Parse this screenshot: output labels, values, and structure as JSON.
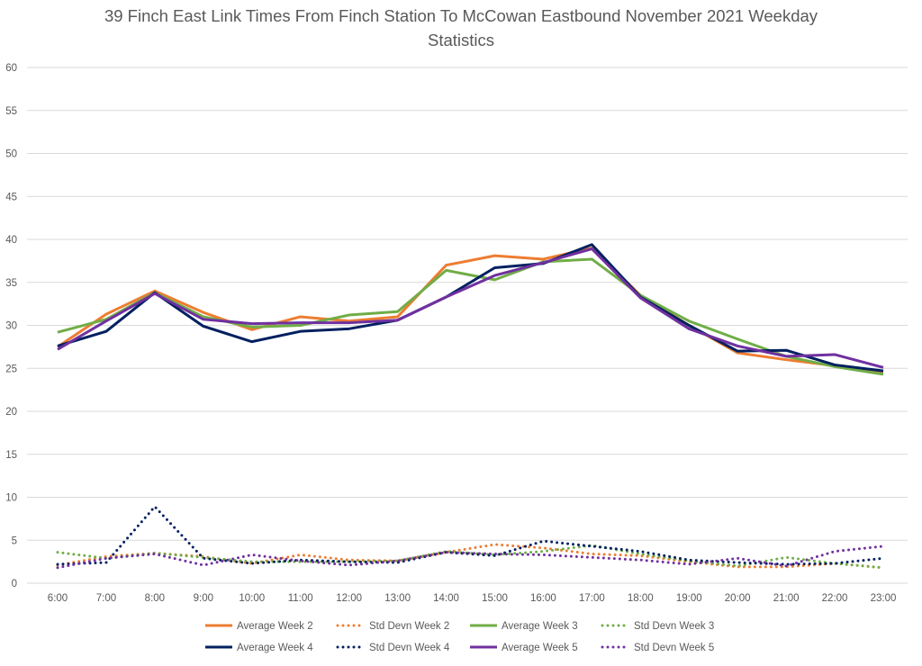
{
  "chart_data": {
    "type": "line",
    "title_line1": "39 Finch East Link Times From Finch Station To McCowan Eastbound November 2021 Weekday",
    "title_line2": "Statistics",
    "xlabel": "",
    "ylabel": "",
    "ylim": [
      0,
      60
    ],
    "yticks": [
      "0",
      "5",
      "10",
      "15",
      "20",
      "25",
      "30",
      "35",
      "40",
      "45",
      "50",
      "55",
      "60"
    ],
    "grid": true,
    "legend_position": "bottom",
    "categories": [
      "6:00",
      "7:00",
      "8:00",
      "9:00",
      "10:00",
      "11:00",
      "12:00",
      "13:00",
      "14:00",
      "15:00",
      "16:00",
      "17:00",
      "18:00",
      "19:00",
      "20:00",
      "21:00",
      "22:00",
      "23:00"
    ],
    "series": [
      {
        "name": "Average Week 2",
        "color": "#ED7D31",
        "style": "solid",
        "values": [
          27.5,
          31.3,
          34.0,
          31.5,
          29.5,
          31.0,
          30.5,
          31.0,
          37.0,
          38.1,
          37.7,
          39.0,
          33.5,
          30.0,
          26.8,
          26.0,
          25.3,
          24.6
        ]
      },
      {
        "name": "Std Devn Week 2",
        "color": "#ED7D31",
        "style": "dotted",
        "values": [
          2.1,
          3.1,
          3.5,
          3.1,
          2.3,
          3.3,
          2.7,
          2.6,
          3.6,
          4.5,
          4.1,
          3.4,
          3.2,
          2.5,
          1.9,
          1.9,
          2.3,
          1.8
        ]
      },
      {
        "name": "Average Week 3",
        "color": "#70AD47",
        "style": "solid",
        "values": [
          29.2,
          30.7,
          33.8,
          31.0,
          29.8,
          30.0,
          31.2,
          31.6,
          36.4,
          35.3,
          37.4,
          37.7,
          33.5,
          30.5,
          28.4,
          26.4,
          25.2,
          24.3
        ]
      },
      {
        "name": "Std Devn Week 3",
        "color": "#70AD47",
        "style": "dotted",
        "values": [
          3.6,
          2.9,
          3.5,
          3.0,
          2.5,
          2.5,
          2.5,
          2.6,
          3.7,
          3.3,
          3.7,
          4.4,
          3.4,
          2.6,
          2.0,
          3.0,
          2.3,
          1.8
        ]
      },
      {
        "name": "Average Week 4",
        "color": "#002060",
        "style": "solid",
        "values": [
          27.6,
          29.3,
          33.8,
          29.9,
          28.1,
          29.3,
          29.6,
          30.6,
          33.3,
          36.7,
          37.2,
          39.4,
          33.3,
          30.0,
          27.0,
          27.1,
          25.4,
          24.7
        ]
      },
      {
        "name": "Std Devn Week 4",
        "color": "#002060",
        "style": "dotted",
        "values": [
          2.2,
          2.4,
          8.9,
          2.9,
          2.3,
          2.7,
          2.5,
          2.4,
          3.6,
          3.2,
          4.9,
          4.3,
          3.7,
          2.7,
          2.4,
          2.2,
          2.3,
          2.9
        ]
      },
      {
        "name": "Average Week 5",
        "color": "#7030A0",
        "style": "solid",
        "values": [
          27.2,
          30.5,
          33.7,
          30.7,
          30.2,
          30.3,
          30.3,
          30.6,
          33.3,
          35.8,
          37.3,
          38.9,
          33.2,
          29.6,
          27.6,
          26.4,
          26.6,
          25.1
        ]
      },
      {
        "name": "Std Devn Week 5",
        "color": "#7030A0",
        "style": "dotted",
        "values": [
          1.8,
          2.9,
          3.4,
          2.1,
          3.3,
          2.6,
          2.1,
          2.6,
          3.6,
          3.4,
          3.3,
          3.0,
          2.7,
          2.2,
          2.9,
          2.0,
          3.7,
          4.3
        ]
      }
    ]
  }
}
